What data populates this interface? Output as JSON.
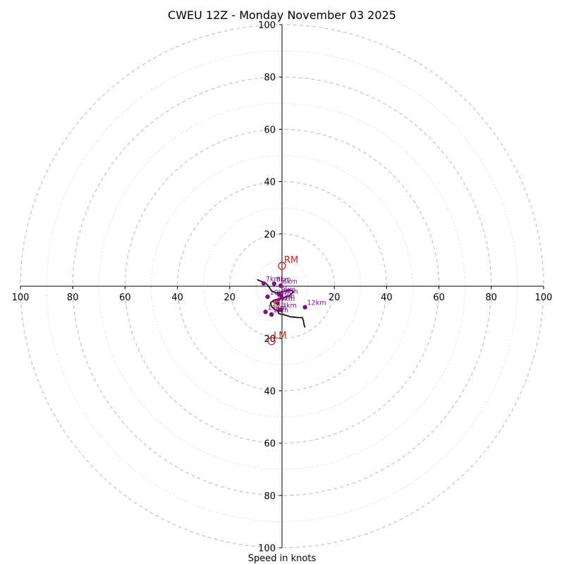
{
  "chart_data": {
    "type": "hodograph",
    "title": "CWEU 12Z - Monday November 03 2025",
    "xlabel": "Speed in knots",
    "units": "knots",
    "range": [
      -100,
      100
    ],
    "ring_major_step": 20,
    "ring_minor_step": 10,
    "x_tick_labels": [
      "100",
      "80",
      "60",
      "40",
      "20",
      "20",
      "40",
      "60",
      "80",
      "100"
    ],
    "y_tick_labels": [
      "100",
      "80",
      "60",
      "40",
      "20",
      "20",
      "40",
      "60",
      "80",
      "100"
    ],
    "grid": true,
    "hodograph_trace": [
      [
        -9.5,
        2.5
      ],
      [
        -7.3,
        1.6
      ],
      [
        -5.8,
        0.8
      ],
      [
        -4.8,
        -0.5
      ],
      [
        -4.0,
        -1.8
      ],
      [
        -2.5,
        -2.5
      ],
      [
        -0.5,
        -2.3
      ],
      [
        1.5,
        -1.8
      ],
      [
        3.0,
        -1.3
      ],
      [
        4.4,
        -2.2
      ],
      [
        2.8,
        -3.6
      ],
      [
        0.6,
        -4.4
      ],
      [
        -1.6,
        -4.9
      ],
      [
        -3.2,
        -5.4
      ],
      [
        -4.4,
        -6.4
      ],
      [
        -4.0,
        -7.7
      ],
      [
        -2.8,
        -8.9
      ],
      [
        -1.6,
        -9.4
      ],
      [
        -1.2,
        -10.5
      ],
      [
        0.5,
        -10.8
      ],
      [
        2.0,
        -11.3
      ],
      [
        3.3,
        -11.7
      ],
      [
        4.6,
        -11.8
      ],
      [
        6.2,
        -12.0
      ],
      [
        7.8,
        -12.0
      ],
      [
        8.2,
        -13.2
      ],
      [
        8.4,
        -14.6
      ],
      [
        8.8,
        -15.8
      ]
    ],
    "height_points": [
      {
        "label": "0km",
        "x": -2.5,
        "y": -6.0
      },
      {
        "label": "1km",
        "x": -1.5,
        "y": -5.5
      },
      {
        "label": "2km",
        "x": -4.0,
        "y": -10.8
      },
      {
        "label": "3km",
        "x": -0.8,
        "y": -9.0
      },
      {
        "label": "4km",
        "x": -1.5,
        "y": -6.5
      },
      {
        "label": "5km",
        "x": -0.3,
        "y": -3.6
      },
      {
        "label": "6km",
        "x": -0.5,
        "y": 0.2
      },
      {
        "label": "7km",
        "x": -7.0,
        "y": 1.1
      },
      {
        "label": "8km",
        "x": -3.0,
        "y": 1.0
      },
      {
        "label": "9km",
        "x": -1.2,
        "y": -3.0
      },
      {
        "label": "10km",
        "x": -5.5,
        "y": -4.0
      },
      {
        "label": "11km",
        "x": -6.3,
        "y": -9.8
      },
      {
        "label": "12km",
        "x": 8.8,
        "y": -8.0
      }
    ],
    "storm_motion": [
      {
        "label": "RM",
        "x": 0.0,
        "y": 7.8
      },
      {
        "label": "LM",
        "x": -4.0,
        "y": -21.0
      }
    ],
    "mean_wind": {
      "x": -1.8,
      "y": -6.7
    }
  }
}
